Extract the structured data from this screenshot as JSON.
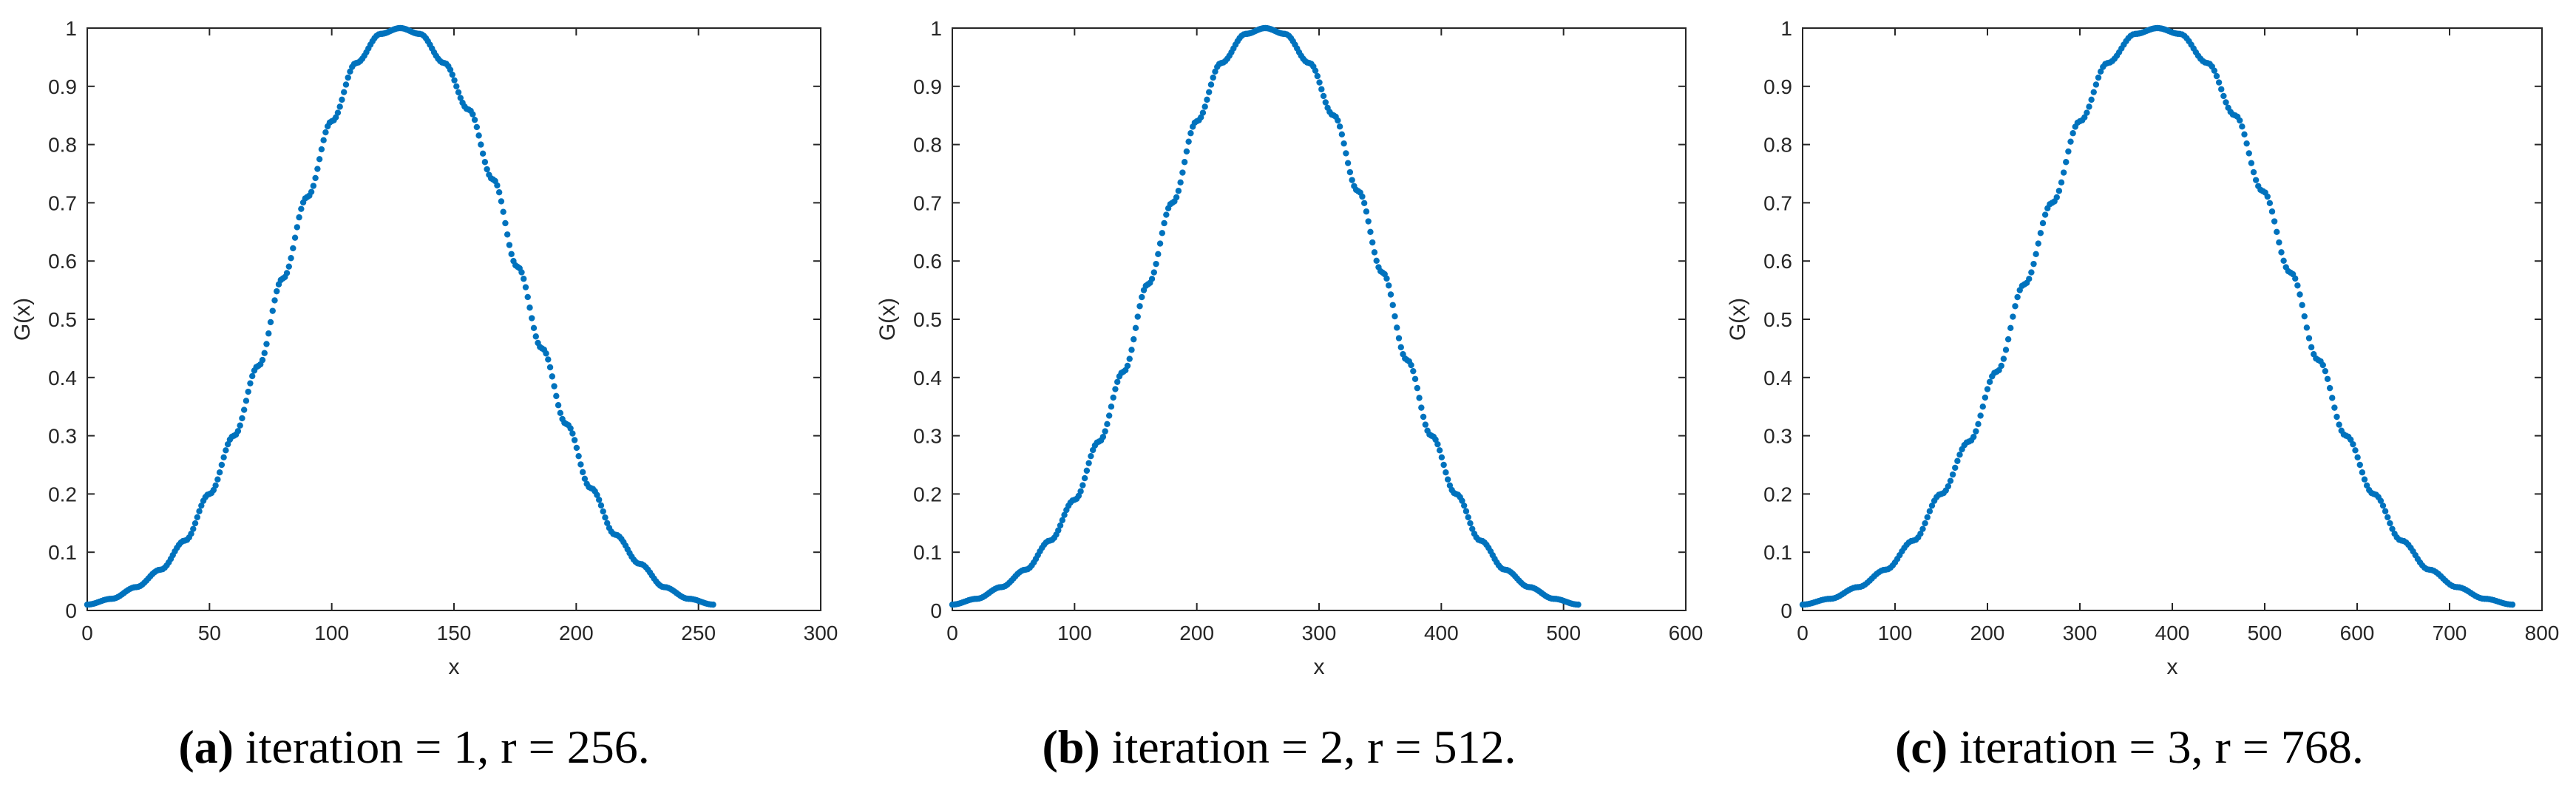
{
  "colors": {
    "marker": "#0072BD",
    "axis": "#262626",
    "background": "#ffffff"
  },
  "chart_data": [
    {
      "type": "scatter",
      "xlabel": "x",
      "ylabel": "G(x)",
      "xlim": [
        0,
        300
      ],
      "ylim": [
        0,
        1
      ],
      "xticks": [
        0,
        50,
        100,
        150,
        200,
        250,
        300
      ],
      "xtick_labels": [
        "0",
        "50",
        "100",
        "150",
        "200",
        "250",
        "300"
      ],
      "yticks": [
        0,
        0.1,
        0.2,
        0.3,
        0.4,
        0.5,
        0.6,
        0.7,
        0.8,
        0.9,
        1
      ],
      "ytick_labels": [
        "0",
        "0.1",
        "0.2",
        "0.3",
        "0.4",
        "0.5",
        "0.6",
        "0.7",
        "0.8",
        "0.9",
        "1"
      ],
      "caption_tag": "(a)",
      "caption_text": "iteration = 1, r = 256.",
      "series": [
        {
          "x": [
            0,
            10,
            20,
            30,
            40,
            50,
            60,
            70,
            80,
            90,
            100,
            110,
            120,
            128,
            136,
            146,
            156,
            166,
            176,
            186,
            196,
            206,
            216,
            226,
            236,
            246,
            256
          ],
          "y": [
            0.01,
            0.02,
            0.04,
            0.07,
            0.12,
            0.2,
            0.3,
            0.42,
            0.57,
            0.71,
            0.84,
            0.94,
            0.99,
            1.0,
            0.99,
            0.94,
            0.86,
            0.74,
            0.59,
            0.45,
            0.32,
            0.21,
            0.13,
            0.08,
            0.04,
            0.02,
            0.01
          ]
        }
      ]
    },
    {
      "type": "scatter",
      "xlabel": "x",
      "ylabel": "G(x)",
      "xlim": [
        0,
        600
      ],
      "ylim": [
        0,
        1
      ],
      "xticks": [
        0,
        100,
        200,
        300,
        400,
        500,
        600
      ],
      "xtick_labels": [
        "0",
        "100",
        "200",
        "300",
        "400",
        "500",
        "600"
      ],
      "yticks": [
        0,
        0.1,
        0.2,
        0.3,
        0.4,
        0.5,
        0.6,
        0.7,
        0.8,
        0.9,
        1
      ],
      "ytick_labels": [
        "0",
        "0.1",
        "0.2",
        "0.3",
        "0.4",
        "0.5",
        "0.6",
        "0.7",
        "0.8",
        "0.9",
        "1"
      ],
      "caption_tag": "(b)",
      "caption_text": "iteration = 2, r = 512.",
      "series": [
        {
          "x": [
            0,
            20,
            40,
            60,
            80,
            100,
            120,
            140,
            160,
            180,
            200,
            220,
            240,
            256,
            272,
            292,
            312,
            332,
            352,
            372,
            392,
            412,
            432,
            452,
            472,
            492,
            512
          ],
          "y": [
            0.01,
            0.02,
            0.04,
            0.07,
            0.12,
            0.19,
            0.29,
            0.41,
            0.56,
            0.7,
            0.84,
            0.94,
            0.99,
            1.0,
            0.99,
            0.94,
            0.85,
            0.72,
            0.58,
            0.43,
            0.3,
            0.2,
            0.12,
            0.07,
            0.04,
            0.02,
            0.01
          ]
        }
      ]
    },
    {
      "type": "scatter",
      "xlabel": "x",
      "ylabel": "G(x)",
      "xlim": [
        0,
        800
      ],
      "ylim": [
        0,
        1
      ],
      "xticks": [
        0,
        100,
        200,
        300,
        400,
        500,
        600,
        700,
        800
      ],
      "xtick_labels": [
        "0",
        "100",
        "200",
        "300",
        "400",
        "500",
        "600",
        "700",
        "800"
      ],
      "yticks": [
        0,
        0.1,
        0.2,
        0.3,
        0.4,
        0.5,
        0.6,
        0.7,
        0.8,
        0.9,
        1
      ],
      "ytick_labels": [
        "0",
        "0.1",
        "0.2",
        "0.3",
        "0.4",
        "0.5",
        "0.6",
        "0.7",
        "0.8",
        "0.9",
        "1"
      ],
      "caption_tag": "(c)",
      "caption_text": "iteration = 3, r = 768.",
      "series": [
        {
          "x": [
            0,
            30,
            60,
            90,
            120,
            150,
            180,
            210,
            240,
            270,
            300,
            330,
            360,
            384,
            408,
            438,
            468,
            498,
            528,
            558,
            588,
            618,
            648,
            678,
            708,
            738,
            768
          ],
          "y": [
            0.01,
            0.02,
            0.04,
            0.07,
            0.12,
            0.2,
            0.29,
            0.41,
            0.56,
            0.7,
            0.84,
            0.94,
            0.99,
            1.0,
            0.99,
            0.94,
            0.85,
            0.72,
            0.58,
            0.43,
            0.3,
            0.2,
            0.12,
            0.07,
            0.04,
            0.02,
            0.01
          ]
        }
      ]
    }
  ]
}
